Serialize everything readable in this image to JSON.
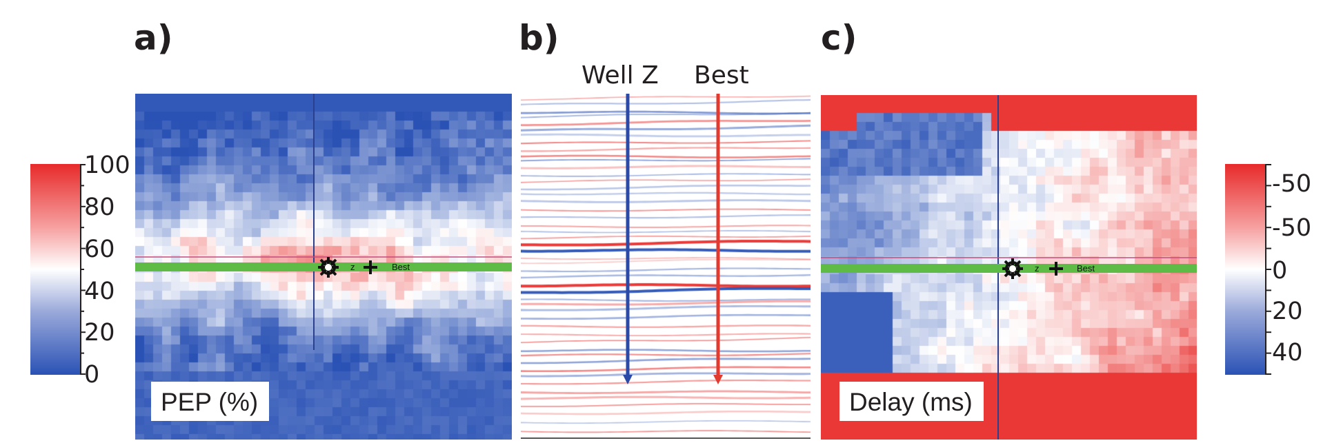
{
  "panels": [
    {
      "id": "a",
      "letter": "a)",
      "label": "PEP (%)"
    },
    {
      "id": "b",
      "letter": "b)",
      "traces": [
        "Well Z",
        "Best"
      ]
    },
    {
      "id": "c",
      "letter": "c)",
      "label": "Delay (ms)"
    }
  ],
  "markers": {
    "well_symbol": "z",
    "best_symbol": "Best"
  },
  "colorbar_left": {
    "ticks": [
      "100",
      "80",
      "60",
      "40",
      "20",
      "0"
    ],
    "colors": [
      "#e82a2a",
      "#ffffff",
      "#2a52b5"
    ]
  },
  "colorbar_right": {
    "ticks": [
      "-50",
      "-50",
      "0",
      "20",
      "40"
    ],
    "colors": [
      "#e82a2a",
      "#ffffff",
      "#2a52b5"
    ]
  },
  "colors": {
    "blue": "#2a52b5",
    "red": "#e8302e",
    "green": "#5dbb46",
    "well_line": "#2b4aa8",
    "best_line": "#e23a2e"
  }
}
